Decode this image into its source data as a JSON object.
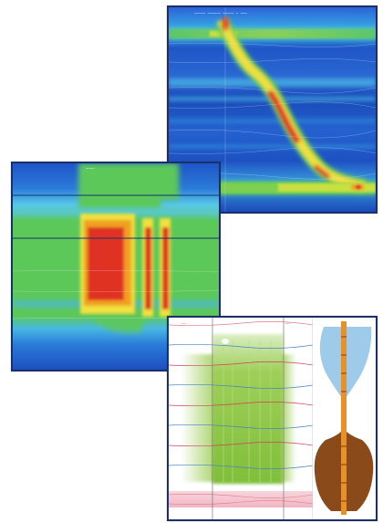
{
  "figure": {
    "panel_top_right": {
      "kind": "esophageal-pressure-topography",
      "caption_glyphs": "~~~~~ ~~~~~~ ~~~~~ ~ ~~~"
    },
    "panel_middle_left": {
      "kind": "esophageal-pressure-topography",
      "caption_glyphs": "~~~~"
    },
    "panel_bottom_right": {
      "kind": "impedance-manometry-with-bolus-diagram",
      "marker_left": "~~",
      "marker_right": "~~"
    }
  },
  "colors": {
    "frame": "#1b2f6b",
    "cold": "#1848c8",
    "cool": "#3fb7e8",
    "mid": "#5cc85a",
    "warm": "#f0e040",
    "hot": "#e03020",
    "bolus_fill": "#7fbf3a",
    "liquid": "#9ecbea",
    "solid": "#8a4a1a",
    "catheter": "#e8902a"
  }
}
